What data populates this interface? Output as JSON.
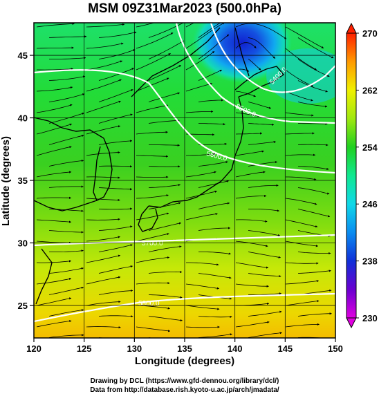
{
  "chart_data": {
    "type": "heatmap",
    "title": "MSM 09Z31Mar2023 (500.0hPa)",
    "xlabel": "Longitude (degrees)",
    "ylabel": "Latitude  (degrees)",
    "xlim": [
      120,
      150
    ],
    "ylim": [
      22.4,
      47.6
    ],
    "x_ticks": [
      "120",
      "125",
      "130",
      "135",
      "140",
      "145",
      "150"
    ],
    "y_ticks": [
      "25",
      "30",
      "35",
      "40",
      "45"
    ],
    "colorbar": {
      "ticks": [
        "230",
        "238",
        "246",
        "254",
        "262",
        "270"
      ],
      "range": [
        230,
        270
      ],
      "stops": [
        {
          "value": 230,
          "color": "#e000e0"
        },
        {
          "value": 234,
          "color": "#6a00d0"
        },
        {
          "value": 238,
          "color": "#1030d8"
        },
        {
          "value": 242,
          "color": "#0a8cf0"
        },
        {
          "value": 246,
          "color": "#10d8e8"
        },
        {
          "value": 250,
          "color": "#10e890"
        },
        {
          "value": 254,
          "color": "#20d020"
        },
        {
          "value": 258,
          "color": "#a0e810"
        },
        {
          "value": 262,
          "color": "#f0f000"
        },
        {
          "value": 266,
          "color": "#ff9a00"
        },
        {
          "value": 270,
          "color": "#ff2000"
        }
      ]
    },
    "contour_labels": [
      "5400.0",
      "5500.0",
      "5600.0",
      "5700.0",
      "5800.0"
    ],
    "field_sample": [
      {
        "lon": 141,
        "lat": 46.5,
        "value": 236
      },
      {
        "lon": 120,
        "lat": 45,
        "value": 252
      },
      {
        "lon": 130,
        "lat": 40,
        "value": 252
      },
      {
        "lon": 120,
        "lat": 35,
        "value": 253
      },
      {
        "lon": 135,
        "lat": 30,
        "value": 258
      },
      {
        "lon": 125,
        "lat": 25,
        "value": 263
      },
      {
        "lon": 145,
        "lat": 25,
        "value": 262
      },
      {
        "lon": 150,
        "lat": 40,
        "value": 254
      }
    ]
  },
  "credits": {
    "line1": "Drawing by DCL (https://www.gfd-dennou.org/library/dcl/)",
    "line2": "Data from http://database.rish.kyoto-u.ac.jp/arch/jmadata/"
  }
}
